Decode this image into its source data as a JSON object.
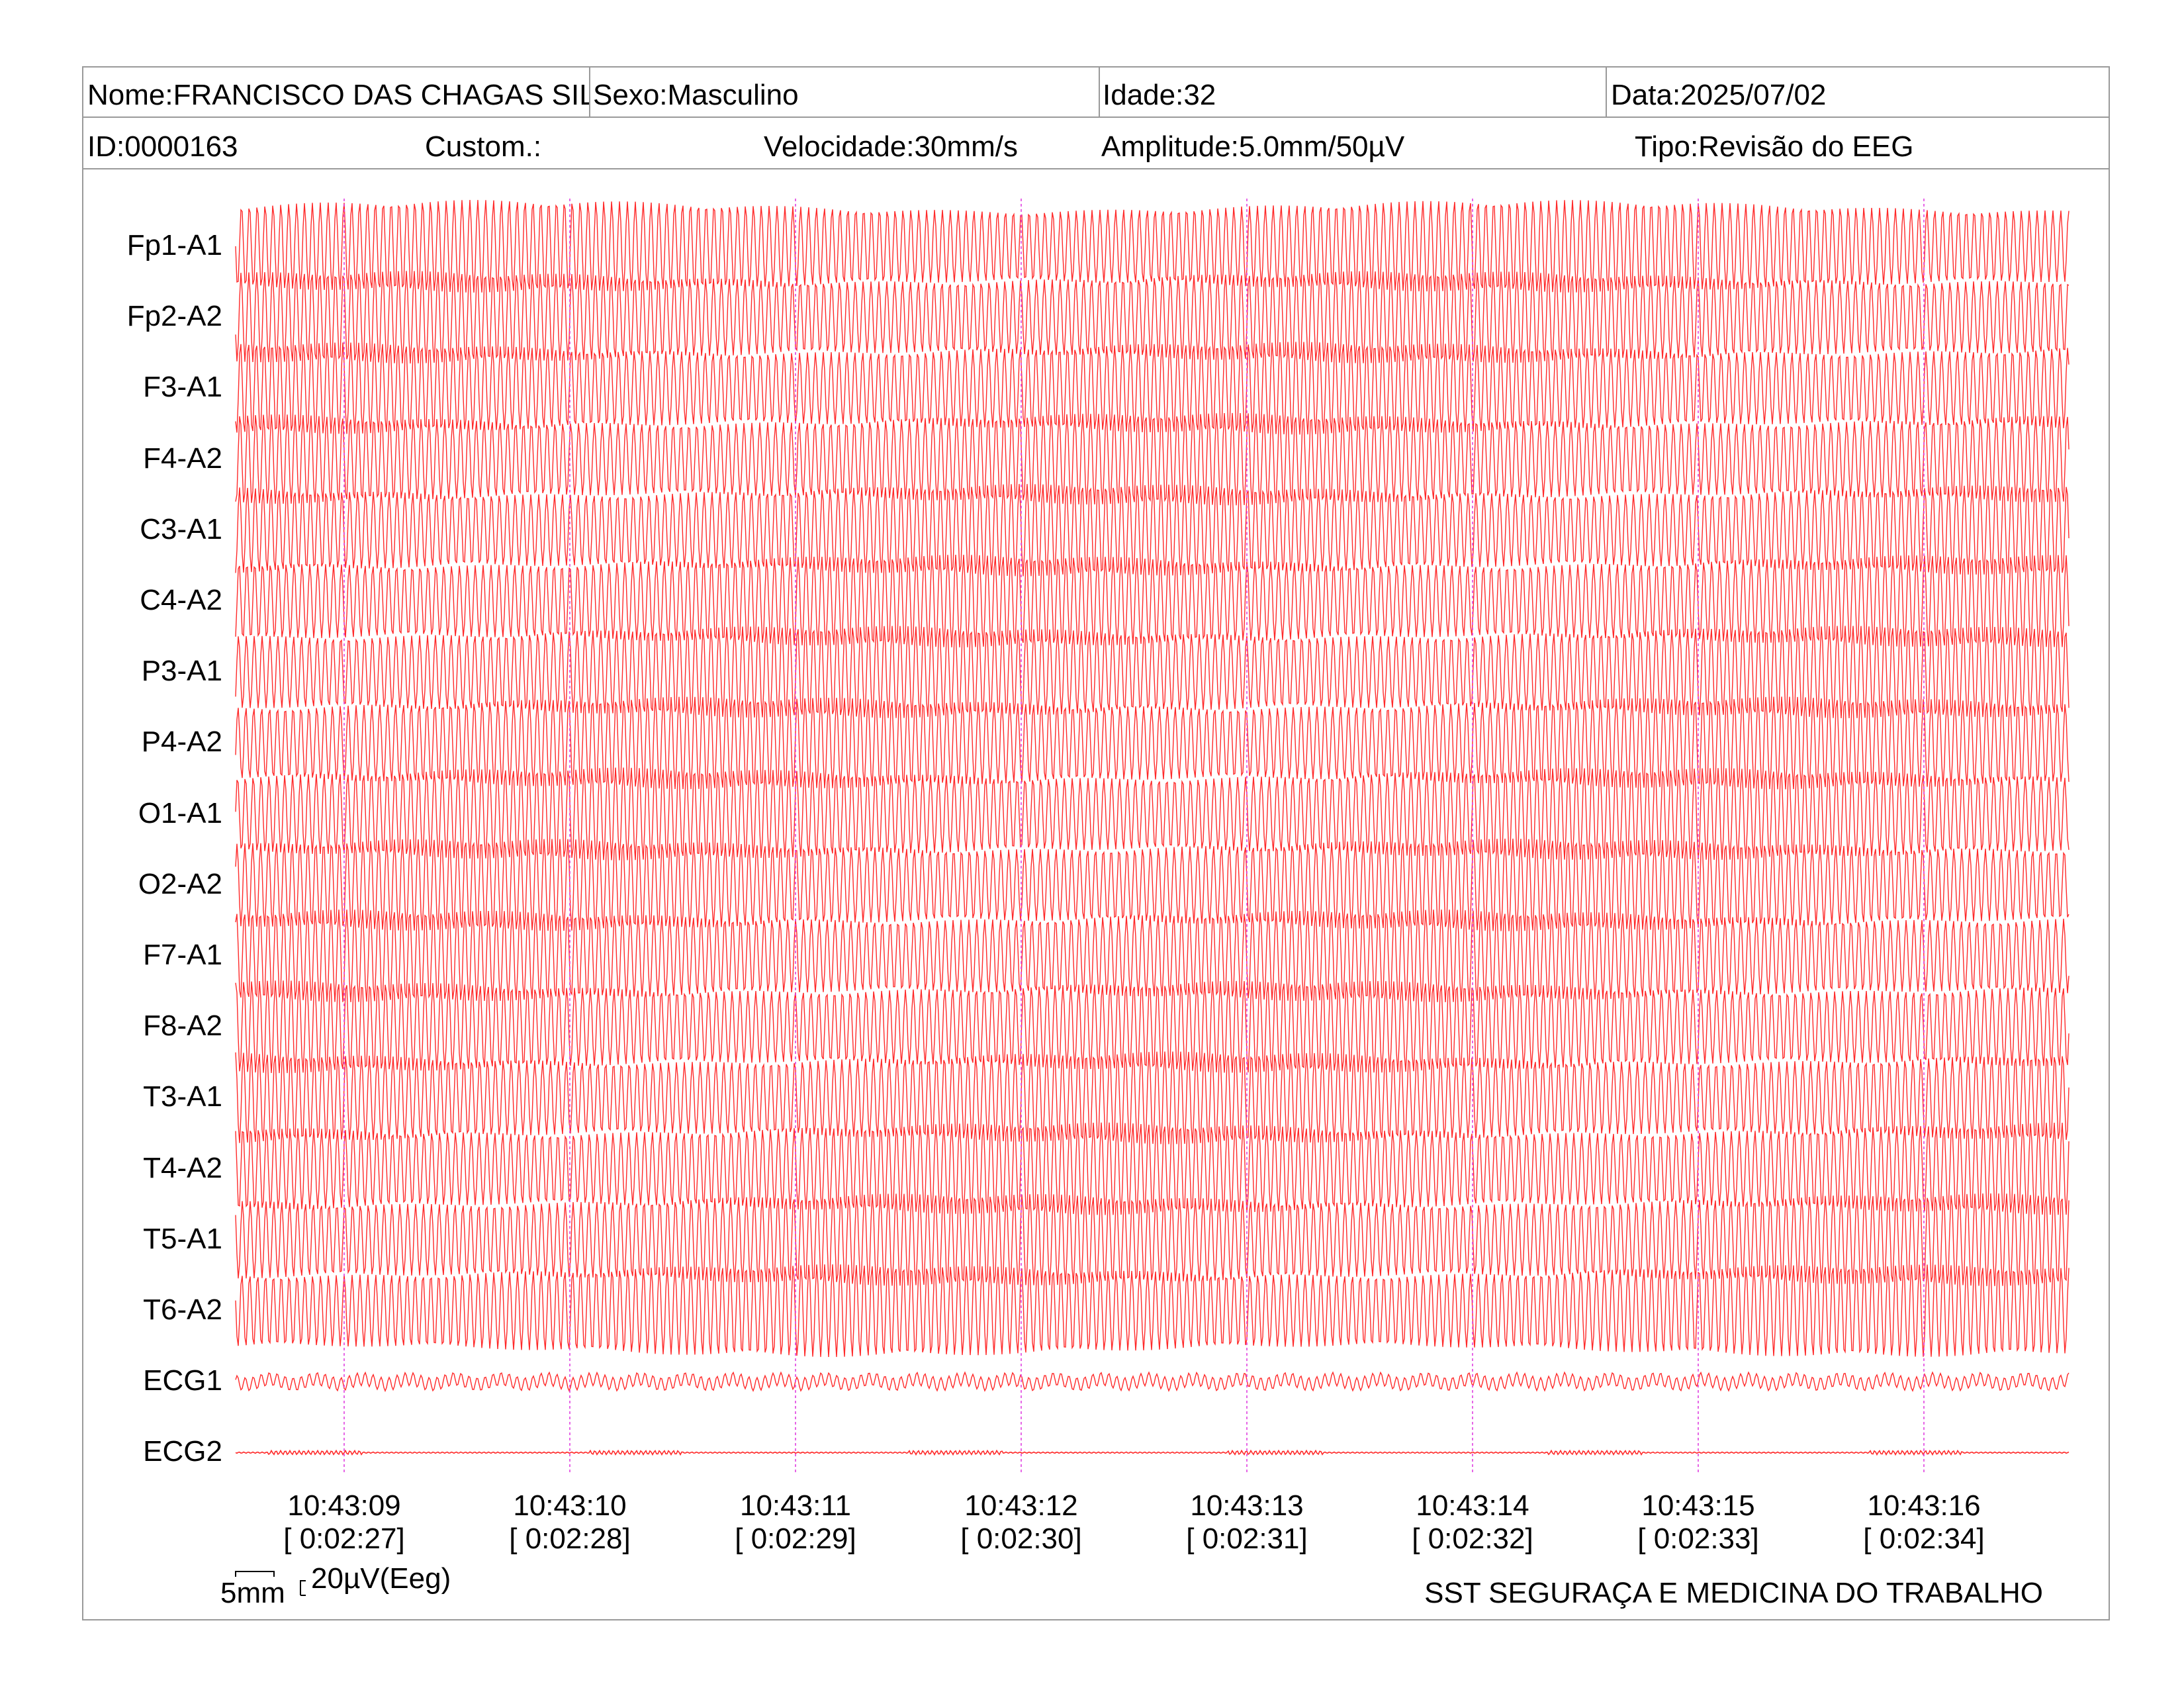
{
  "header": {
    "name": "Nome:FRANCISCO DAS CHAGAS SIL",
    "sex": "Sexo:Masculino",
    "age": "Idade:32",
    "date": "Data:2025/07/02",
    "id": "ID:0000163",
    "custom": "Custom.:",
    "speed": "Velocidade:30mm/s",
    "amplitude": "Amplitude:5.0mm/50µV",
    "type": "Tipo:Revisão do EEG"
  },
  "channels": [
    "Fp1-A1",
    "Fp2-A2",
    "F3-A1",
    "F4-A2",
    "C3-A1",
    "C4-A2",
    "P3-A1",
    "P4-A2",
    "O1-A1",
    "O2-A2",
    "F7-A1",
    "F8-A2",
    "T3-A1",
    "T4-A2",
    "T5-A1",
    "T6-A2",
    "ECG1",
    "ECG2"
  ],
  "time_marks": [
    {
      "clock": "10:43:09",
      "elapsed": "[ 0:02:27]"
    },
    {
      "clock": "10:43:10",
      "elapsed": "[ 0:02:28]"
    },
    {
      "clock": "10:43:11",
      "elapsed": "[ 0:02:29]"
    },
    {
      "clock": "10:43:12",
      "elapsed": "[ 0:02:30]"
    },
    {
      "clock": "10:43:13",
      "elapsed": "[ 0:02:31]"
    },
    {
      "clock": "10:43:14",
      "elapsed": "[ 0:02:32]"
    },
    {
      "clock": "10:43:15",
      "elapsed": "[ 0:02:33]"
    },
    {
      "clock": "10:43:16",
      "elapsed": "[ 0:02:34]"
    }
  ],
  "scale": {
    "time_label": "5mm",
    "amp_label": "20µV(Eeg)"
  },
  "footer": {
    "clinic": "SST SEGURAÇA E MEDICINA DO TRABALHO"
  },
  "colors": {
    "trace": "#ff2a2a",
    "marker": "#e040e0",
    "border": "#9a9a9a"
  }
}
